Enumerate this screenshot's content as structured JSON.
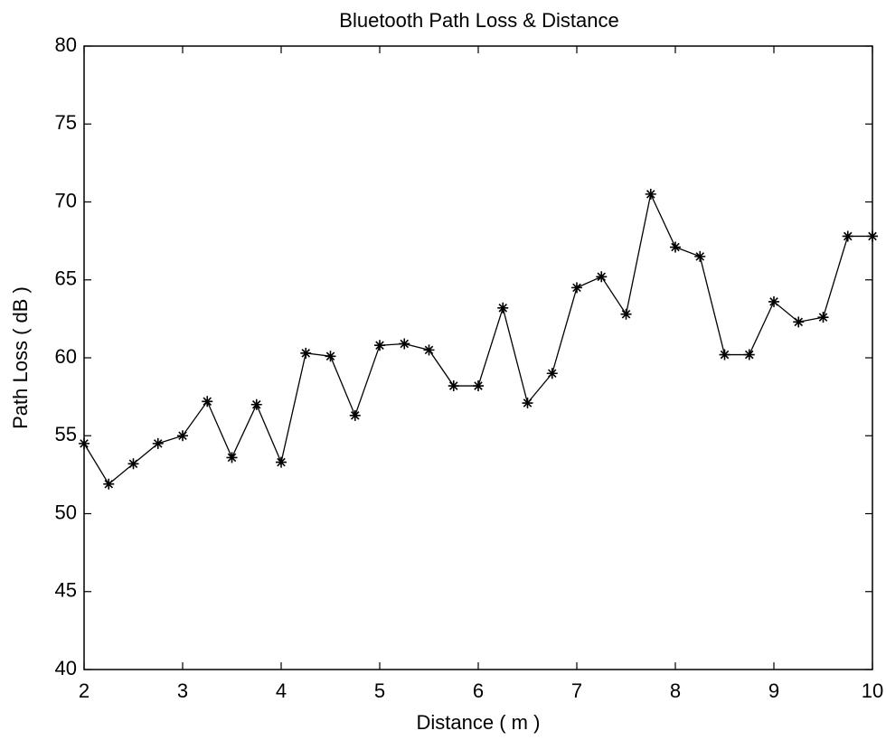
{
  "chart_data": {
    "type": "line",
    "title": "Bluetooth Path Loss & Distance",
    "x_label": "Distance ( m )",
    "y_label": "Path Loss ( dB )",
    "x": [
      2,
      2.25,
      2.5,
      2.75,
      3,
      3.25,
      3.5,
      3.75,
      4,
      4.25,
      4.5,
      4.75,
      5,
      5.25,
      5.5,
      5.75,
      6,
      6.25,
      6.5,
      6.75,
      7,
      7.25,
      7.5,
      7.75,
      8,
      8.25,
      8.5,
      8.75,
      9,
      9.25,
      9.5,
      9.75,
      10
    ],
    "series": [
      {
        "name": "Path Loss",
        "color": "#000000",
        "values": [
          54.5,
          51.9,
          53.2,
          54.5,
          55.0,
          57.2,
          53.6,
          57.0,
          53.3,
          60.3,
          60.1,
          56.3,
          60.8,
          60.9,
          60.5,
          58.2,
          58.2,
          63.2,
          57.1,
          59.0,
          64.5,
          65.2,
          62.8,
          70.5,
          67.1,
          66.5,
          60.2,
          60.2,
          63.6,
          62.3,
          62.6,
          67.8,
          67.8
        ]
      }
    ],
    "xlim": [
      2,
      10
    ],
    "xticks": [
      2,
      3,
      4,
      5,
      6,
      7,
      8,
      9,
      10
    ],
    "ylim": [
      40,
      80
    ],
    "yticks": [
      40,
      45,
      50,
      55,
      60,
      65,
      70,
      75,
      80
    ],
    "grid": false,
    "marker": "asterisk"
  }
}
